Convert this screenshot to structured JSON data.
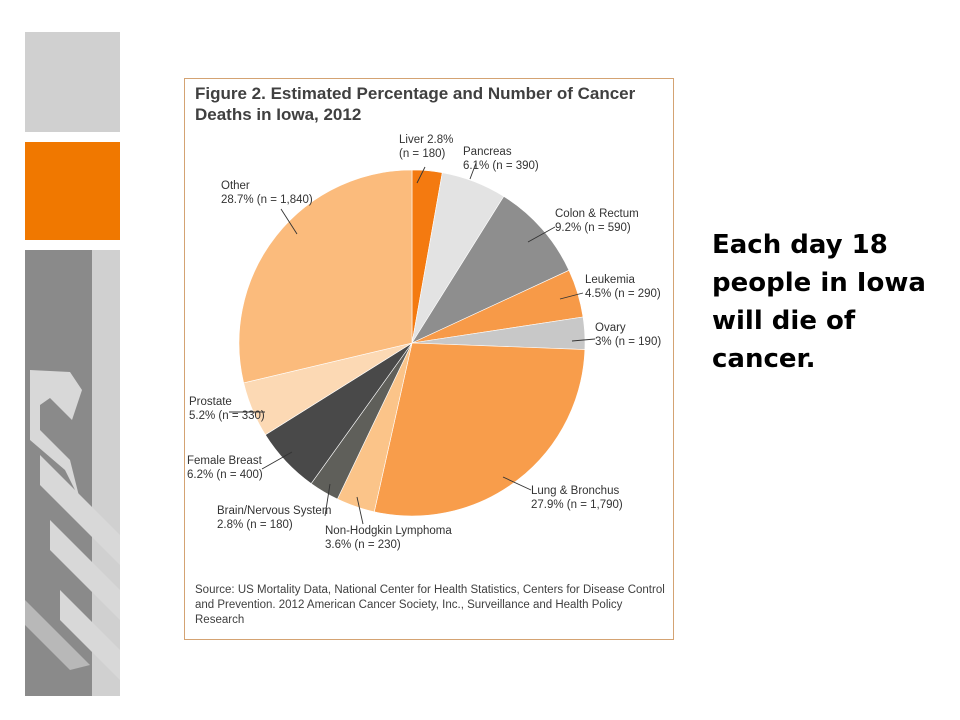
{
  "slide": {
    "headline": "Each day 18 people in Iowa will die of cancer.",
    "colors": {
      "accent_orange": "#f07800",
      "panel_gray": "#8a8a8a",
      "light_gray": "#d0d0d0"
    }
  },
  "figure": {
    "title": "Figure 2. Estimated Percentage and Number of Cancer Deaths in Iowa, 2012",
    "source": "Source: US Mortality Data, National Center for Health Statistics, Centers for Disease Control and Prevention. 2012 American Cancer Society, Inc., Surveillance and Health Policy Research"
  },
  "chart_data": {
    "type": "pie",
    "title": "Figure 2. Estimated Percentage and Number of Cancer Deaths in Iowa, 2012",
    "start": "12 o'clock",
    "direction": "clockwise",
    "slices": [
      {
        "name": "Liver",
        "percent": 2.8,
        "n": 180,
        "color": "#f47a10",
        "label_lines": [
          "Liver 2.8%",
          "(n = 180)"
        ]
      },
      {
        "name": "Pancreas",
        "percent": 6.1,
        "n": 390,
        "color": "#e3e3e3",
        "label_lines": [
          "Pancreas",
          "6.1% (n = 390)"
        ]
      },
      {
        "name": "Colon & Rectum",
        "percent": 9.2,
        "n": 590,
        "color": "#8e8e8e",
        "label_lines": [
          "Colon & Rectum",
          "9.2% (n = 590)"
        ]
      },
      {
        "name": "Leukemia",
        "percent": 4.5,
        "n": 290,
        "color": "#f79a48",
        "label_lines": [
          "Leukemia",
          "4.5% (n = 290)"
        ]
      },
      {
        "name": "Ovary",
        "percent": 3,
        "n": 190,
        "color": "#c8c8c8",
        "label_lines": [
          "Ovary",
          "3% (n = 190)"
        ]
      },
      {
        "name": "Lung & Bronchus",
        "percent": 27.9,
        "n": 1790,
        "color": "#f89d4b",
        "label_lines": [
          "Lung & Bronchus",
          "27.9% (n = 1,790)"
        ]
      },
      {
        "name": "Non-Hodgkin Lymphoma",
        "percent": 3.6,
        "n": 230,
        "color": "#fbc489",
        "label_lines": [
          "Non-Hodgkin Lymphoma",
          "3.6% (n = 230)"
        ]
      },
      {
        "name": "Brain/Nervous System",
        "percent": 2.8,
        "n": 180,
        "color": "#5f5f5a",
        "label_lines": [
          "Brain/Nervous System",
          "2.8% (n = 180)"
        ]
      },
      {
        "name": "Female Breast",
        "percent": 6.2,
        "n": 400,
        "color": "#494949",
        "label_lines": [
          "Female Breast",
          "6.2% (n = 400)"
        ]
      },
      {
        "name": "Prostate",
        "percent": 5.2,
        "n": 330,
        "color": "#fcd9b4",
        "label_lines": [
          "Prostate",
          "5.2% (n = 330)"
        ]
      },
      {
        "name": "Other",
        "percent": 28.7,
        "n": 1840,
        "color": "#fbbb7c",
        "label_lines": [
          "Other",
          "28.7% (n = 1,840)"
        ]
      }
    ]
  }
}
